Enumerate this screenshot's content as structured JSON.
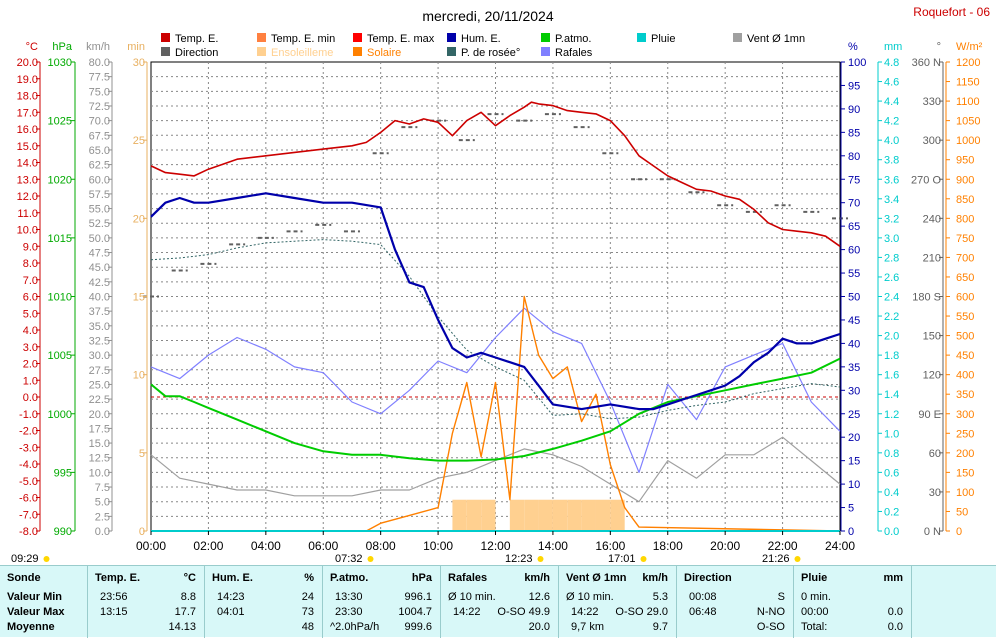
{
  "header": {
    "title": "mercredi, 20/11/2024",
    "station": "Roquefort - 06"
  },
  "legend": [
    {
      "label": "Temp. E.",
      "color": "#cc0000"
    },
    {
      "label": "Temp. E. min",
      "color": "#ff8040"
    },
    {
      "label": "Temp. E. max",
      "color": "#ff0000"
    },
    {
      "label": "Hum. E.",
      "color": "#0000aa"
    },
    {
      "label": "P.atmo.",
      "color": "#00cc00"
    },
    {
      "label": "Pluie",
      "color": "#00cccc"
    },
    {
      "label": "Vent Ø 1mn",
      "color": "#a0a0a0"
    },
    {
      "label": "Direction",
      "color": "#606060"
    },
    {
      "label": "Ensoleilleme",
      "color": "#ffd090"
    },
    {
      "label": "Solaire",
      "color": "#ff8000"
    },
    {
      "label": "P. de rosée°",
      "color": "#336666"
    },
    {
      "label": "Rafales",
      "color": "#8080ff"
    }
  ],
  "axis_units": {
    "temp": "°C",
    "pressure": "hPa",
    "wind": "km/h",
    "sun_min": "min",
    "humidity": "%",
    "rain": "mm",
    "direction": "°",
    "solar": "W/m²"
  },
  "sun_times": [
    "09:29",
    "07:32",
    "12:23",
    "17:01",
    "21:26"
  ],
  "chart_data": {
    "type": "line",
    "title": "mercredi, 20/11/2024",
    "x_ticks": [
      "00:00",
      "02:00",
      "04:00",
      "06:00",
      "08:00",
      "10:00",
      "12:00",
      "14:00",
      "16:00",
      "18:00",
      "20:00",
      "22:00",
      "24:00"
    ],
    "axes": {
      "temp": {
        "label": "°C",
        "range": [
          -8.0,
          20.0
        ],
        "ticks": [
          "20.0",
          "19.0",
          "18.0",
          "17.0",
          "16.0",
          "15.0",
          "14.0",
          "13.0",
          "12.0",
          "11.0",
          "10.0",
          "9.0",
          "8.0",
          "7.0",
          "6.0",
          "5.0",
          "4.0",
          "3.0",
          "2.0",
          "1.0",
          "0.0",
          "-1.0",
          "-2.0",
          "-3.0",
          "-4.0",
          "-5.0",
          "-6.0",
          "-7.0",
          "-8.0"
        ]
      },
      "pressure": {
        "label": "hPa",
        "range": [
          990,
          1030
        ],
        "ticks": [
          "1030",
          "1025",
          "1020",
          "1015",
          "1010",
          "1005",
          "1000",
          "995",
          "990"
        ]
      },
      "wind": {
        "label": "km/h",
        "range": [
          0,
          80
        ],
        "ticks": [
          "80.0",
          "77.5",
          "75.0",
          "72.5",
          "70.0",
          "67.5",
          "65.0",
          "62.5",
          "60.0",
          "57.5",
          "55.0",
          "52.5",
          "50.0",
          "47.5",
          "45.0",
          "42.5",
          "40.0",
          "37.5",
          "35.0",
          "32.5",
          "30.0",
          "27.5",
          "25.0",
          "22.5",
          "20.0",
          "17.5",
          "15.0",
          "12.5",
          "10.0",
          "7.5",
          "5.0",
          "2.5",
          "0.0"
        ]
      },
      "sun_min": {
        "label": "min",
        "range": [
          0,
          30
        ],
        "ticks": [
          "30",
          "25",
          "20",
          "15",
          "10",
          "5",
          "0"
        ]
      },
      "humidity": {
        "label": "%",
        "range": [
          0,
          100
        ],
        "ticks": [
          "100",
          "95",
          "90",
          "85",
          "80",
          "75",
          "70",
          "65",
          "60",
          "55",
          "50",
          "45",
          "40",
          "35",
          "30",
          "25",
          "20",
          "15",
          "10",
          "5",
          "0"
        ]
      },
      "rain": {
        "label": "mm",
        "range": [
          0,
          4.8
        ],
        "ticks": [
          "4.8",
          "4.6",
          "4.4",
          "4.2",
          "4.0",
          "3.8",
          "3.6",
          "3.4",
          "3.2",
          "3.0",
          "2.8",
          "2.6",
          "2.4",
          "2.2",
          "2.0",
          "1.8",
          "1.6",
          "1.4",
          "1.2",
          "1.0",
          "0.8",
          "0.6",
          "0.4",
          "0.2",
          "0.0"
        ]
      },
      "direction": {
        "label": "°",
        "range": [
          0,
          360
        ],
        "ticks": [
          "360 N",
          "330",
          "300",
          "270 O",
          "240",
          "210",
          "180 S",
          "150",
          "120",
          "90 E",
          "60",
          "30",
          "0 N"
        ]
      },
      "solar": {
        "label": "W/m²",
        "range": [
          0,
          1200
        ],
        "ticks": [
          "1200",
          "1150",
          "1100",
          "1050",
          "1000",
          "950",
          "900",
          "850",
          "800",
          "750",
          "700",
          "650",
          "600",
          "550",
          "500",
          "450",
          "400",
          "350",
          "300",
          "250",
          "200",
          "150",
          "100",
          "50",
          "0"
        ]
      }
    },
    "series": [
      {
        "name": "Temp. E.",
        "axis": "temp",
        "color": "#cc0000",
        "x": [
          0,
          0.5,
          1,
          1.5,
          2,
          2.5,
          3,
          4,
          5,
          6,
          7,
          7.5,
          8,
          8.5,
          9,
          9.5,
          10,
          10.5,
          11,
          11.5,
          12,
          12.5,
          13,
          13.25,
          13.5,
          14,
          14.5,
          15,
          15.5,
          16,
          16.5,
          17,
          17.5,
          18,
          18.5,
          19,
          19.5,
          20,
          20.5,
          21,
          21.5,
          22,
          22.5,
          23,
          23.5,
          24
        ],
        "y": [
          13.8,
          13.4,
          13.3,
          13.2,
          13.6,
          13.9,
          14.2,
          14.4,
          14.6,
          14.8,
          15.0,
          15.2,
          15.8,
          16.5,
          16.3,
          16.6,
          16.4,
          15.6,
          16.5,
          17.0,
          16.2,
          16.8,
          17.3,
          17.6,
          17.5,
          17.4,
          17.1,
          17.0,
          16.9,
          16.5,
          15.6,
          14.4,
          13.8,
          13.2,
          12.8,
          12.4,
          12.3,
          12.0,
          11.8,
          11.2,
          10.4,
          10.0,
          9.9,
          9.8,
          9.6,
          9.0
        ]
      },
      {
        "name": "Hum. E.",
        "axis": "humidity",
        "color": "#0000aa",
        "x": [
          0,
          0.5,
          1,
          1.5,
          2,
          3,
          4,
          5,
          6,
          7,
          8,
          8.5,
          9,
          9.5,
          10,
          10.5,
          11,
          11.5,
          12,
          12.5,
          13,
          13.5,
          14,
          15,
          16,
          17,
          17.5,
          18,
          18.5,
          19,
          19.5,
          20,
          20.5,
          21,
          21.5,
          22,
          22.5,
          23,
          23.5,
          24
        ],
        "y": [
          67,
          70,
          71,
          70,
          70,
          71,
          72,
          71,
          70,
          70,
          69,
          60,
          53,
          52,
          45,
          39,
          37,
          38,
          37,
          36,
          35,
          31,
          27,
          26,
          27,
          26,
          26,
          27,
          28,
          29,
          30,
          31,
          33,
          36,
          38,
          41,
          40,
          40,
          41,
          42
        ]
      },
      {
        "name": "P.atmo.",
        "axis": "pressure",
        "color": "#00cc00",
        "x": [
          0,
          0.5,
          1,
          1.5,
          2,
          3,
          4,
          5,
          6,
          7,
          8,
          9,
          10,
          11,
          12,
          13,
          14,
          15,
          16,
          17,
          18,
          19,
          20,
          21,
          22,
          23,
          24
        ],
        "y": [
          1002.5,
          1001.5,
          1001.5,
          1001.0,
          1000.5,
          999.5,
          998.5,
          997.5,
          996.8,
          996.5,
          996.5,
          996.2,
          996.0,
          996.0,
          996.1,
          996.4,
          997.0,
          997.7,
          998.5,
          1000.0,
          1001.0,
          1001.5,
          1002.0,
          1002.5,
          1003.0,
          1003.5,
          1004.7
        ]
      },
      {
        "name": "P. de rosée°",
        "axis": "temp",
        "color": "#336666",
        "x": [
          0,
          1,
          2,
          3,
          4,
          5,
          6,
          7,
          8,
          9,
          10,
          11,
          12,
          13,
          14,
          15,
          16,
          17,
          18,
          19,
          20,
          21,
          22,
          23,
          24
        ],
        "y": [
          8.2,
          8.3,
          8.5,
          8.9,
          9.2,
          9.3,
          9.4,
          9.3,
          9.1,
          7.2,
          4.8,
          2.8,
          1.8,
          1.0,
          -1.1,
          -1.0,
          -1.3,
          -1.2,
          -0.8,
          -0.5,
          -0.3,
          0.2,
          0.5,
          0.8,
          0.6
        ]
      },
      {
        "name": "Vent Ø 1mn",
        "axis": "wind",
        "color": "#a0a0a0",
        "x": [
          0,
          1,
          2,
          3,
          4,
          5,
          6,
          7,
          8,
          9,
          10,
          11,
          12,
          13,
          14,
          15,
          16,
          17,
          18,
          19,
          20,
          21,
          22,
          23,
          24
        ],
        "y": [
          13,
          9,
          8,
          7,
          7,
          6,
          6,
          6,
          7,
          7,
          9,
          10,
          12,
          14,
          13,
          11,
          8,
          5,
          12,
          9,
          13,
          13,
          16,
          12,
          8
        ]
      },
      {
        "name": "Rafales",
        "axis": "wind",
        "color": "#8080ff",
        "x": [
          0,
          1,
          2,
          3,
          4,
          5,
          6,
          7,
          8,
          9,
          10,
          11,
          12,
          13,
          14,
          15,
          16,
          17,
          18,
          19,
          20,
          21,
          22,
          23,
          24
        ],
        "y": [
          28,
          26,
          30,
          33,
          31,
          28,
          27,
          22,
          20,
          24,
          29,
          27,
          33,
          38,
          34,
          32,
          22,
          10,
          25,
          19,
          28,
          30,
          32,
          22,
          17
        ]
      },
      {
        "name": "Direction",
        "axis": "direction",
        "color": "#606060",
        "x": [
          0,
          1,
          2,
          3,
          4,
          5,
          6,
          7,
          8,
          9,
          10,
          11,
          12,
          13,
          14,
          15,
          16,
          17,
          18,
          19,
          20,
          21,
          22,
          23,
          24
        ],
        "y": [
          180,
          200,
          205,
          220,
          225,
          230,
          235,
          230,
          290,
          310,
          315,
          300,
          320,
          315,
          320,
          310,
          290,
          270,
          270,
          260,
          250,
          245,
          250,
          245,
          240
        ]
      },
      {
        "name": "Solaire",
        "axis": "solar",
        "color": "#ff8000",
        "x": [
          0,
          7.5,
          8,
          9,
          10,
          10.5,
          11,
          11.5,
          12,
          12.5,
          13,
          13.5,
          14,
          14.5,
          15,
          15.5,
          16,
          16.5,
          17,
          24
        ],
        "y": [
          0,
          0,
          20,
          40,
          60,
          250,
          380,
          190,
          380,
          80,
          600,
          450,
          390,
          420,
          280,
          350,
          170,
          60,
          10,
          0
        ]
      },
      {
        "name": "Pluie",
        "axis": "rain",
        "color": "#00cccc",
        "x": [
          0,
          24
        ],
        "y": [
          0,
          0
        ]
      }
    ],
    "sunshine_minutes": {
      "x": [
        10.5,
        11.0,
        11.5,
        12.5,
        13.0,
        13.5,
        14.0,
        14.5,
        15.0,
        15.5,
        16.0
      ],
      "y": [
        2,
        2,
        2,
        2,
        2,
        2,
        2,
        2,
        2,
        2,
        2
      ]
    }
  },
  "stats": {
    "headers": [
      {
        "label": "Sonde",
        "unit": ""
      },
      {
        "label": "Temp. E.",
        "unit": "°C"
      },
      {
        "label": "Hum. E.",
        "unit": "%"
      },
      {
        "label": "P.atmo.",
        "unit": "hPa"
      },
      {
        "label": "Rafales",
        "unit": "km/h"
      },
      {
        "label": "Vent Ø 1mn",
        "unit": "km/h"
      },
      {
        "label": "Direction",
        "unit": ""
      },
      {
        "label": "Pluie",
        "unit": "mm"
      }
    ],
    "rows": [
      {
        "label": "Valeur Min",
        "temp": {
          "time": "23:56",
          "value": "8.8"
        },
        "hum": {
          "time": "14:23",
          "value": "24"
        },
        "patmo": {
          "time": "13:30",
          "value": "996.1"
        },
        "raf": {
          "time": "Ø 10 min.",
          "value": "12.6"
        },
        "vent": {
          "time": "Ø 10 min.",
          "value": "5.3"
        },
        "dir": {
          "time": "00:08",
          "value": "S"
        },
        "pluie": {
          "time": "0 min.",
          "value": ""
        }
      },
      {
        "label": "Valeur Max",
        "temp": {
          "time": "13:15",
          "value": "17.7"
        },
        "hum": {
          "time": "04:01",
          "value": "73"
        },
        "patmo": {
          "time": "23:30",
          "value": "1004.7"
        },
        "raf": {
          "time": "14:22",
          "value": "O-SO 49.9"
        },
        "vent": {
          "time": "14:22",
          "value": "O-SO 29.0"
        },
        "dir": {
          "time": "06:48",
          "value": "N-NO"
        },
        "pluie": {
          "time": "00:00",
          "value": "0.0"
        }
      },
      {
        "label": "Moyenne",
        "temp": {
          "time": "",
          "value": "14.13"
        },
        "hum": {
          "time": "",
          "value": "48"
        },
        "patmo": {
          "time": "^2.0hPa/h",
          "value": "999.6"
        },
        "raf": {
          "time": "",
          "value": "20.0"
        },
        "vent": {
          "time": "9,7 km",
          "value": "9.7"
        },
        "dir": {
          "time": "",
          "value": "O-SO"
        },
        "pluie": {
          "time": "Total:",
          "value": "0.0"
        }
      }
    ]
  }
}
